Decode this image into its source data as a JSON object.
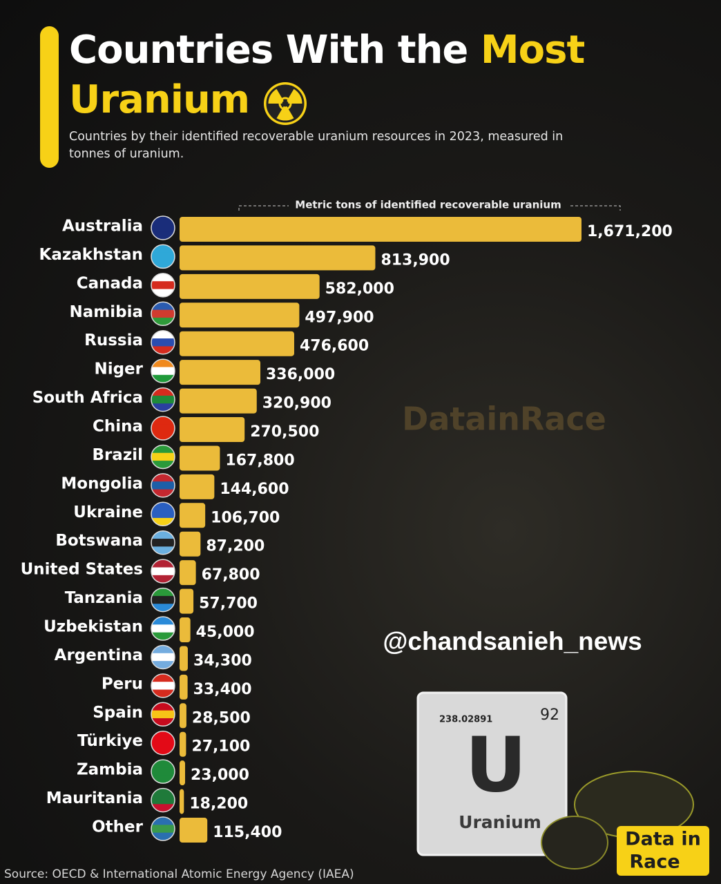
{
  "chart_data": {
    "type": "bar",
    "orientation": "horizontal",
    "title_parts": [
      "Countries With the",
      "Most",
      "Uranium"
    ],
    "subtitle": "Countries by their identified recoverable uranium resources in 2023, measured in tonnes of uranium.",
    "axis_note": "Metric tons of identified recoverable uranium",
    "categories": [
      "Australia",
      "Kazakhstan",
      "Canada",
      "Namibia",
      "Russia",
      "Niger",
      "South Africa",
      "China",
      "Brazil",
      "Mongolia",
      "Ukraine",
      "Botswana",
      "United States",
      "Tanzania",
      "Uzbekistan",
      "Argentina",
      "Peru",
      "Spain",
      "Türkiye",
      "Zambia",
      "Mauritania",
      "Other"
    ],
    "values": [
      1671200,
      813900,
      582000,
      497900,
      476600,
      336000,
      320900,
      270500,
      167800,
      144600,
      106700,
      87200,
      67800,
      57700,
      45000,
      34300,
      33400,
      28500,
      27100,
      23000,
      18200,
      115400
    ],
    "value_labels": [
      "1,671,200",
      "813,900",
      "582,000",
      "497,900",
      "476,600",
      "336,000",
      "320,900",
      "270,500",
      "167,800",
      "144,600",
      "106,700",
      "87,200",
      "67,800",
      "57,700",
      "45,000",
      "34,300",
      "33,400",
      "28,500",
      "27,100",
      "23,000",
      "18,200",
      "115,400"
    ],
    "color": "#ebbb3a",
    "source": "Source: OECD & International Atomic Energy Agency (IAEA)",
    "watermark": "@chandsanieh_news",
    "brand": "DatainRace",
    "element_card": {
      "mass": "238.02891",
      "number": "92",
      "symbol": "U",
      "name": "Uranium"
    },
    "logo": [
      "Data in",
      "Race"
    ]
  }
}
